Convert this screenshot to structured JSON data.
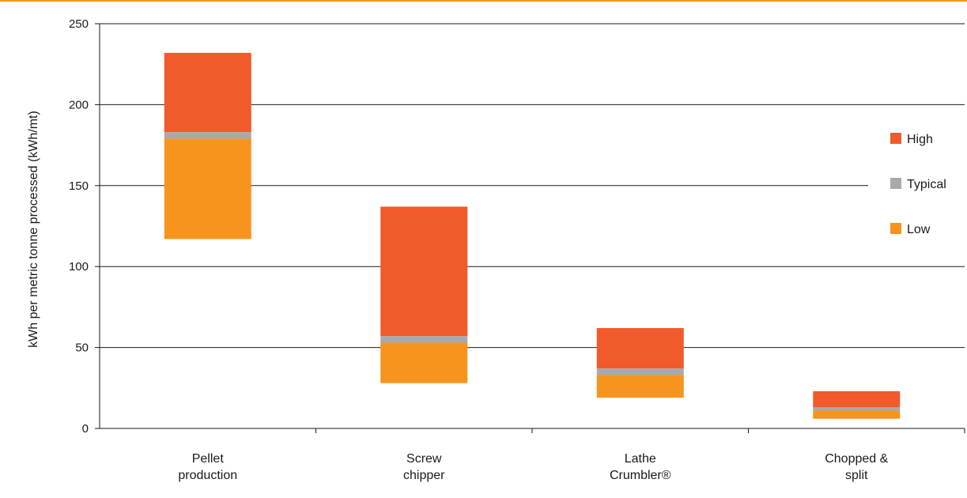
{
  "chart_data": {
    "type": "bar",
    "stacked": true,
    "floating": true,
    "title": "",
    "xlabel": "",
    "ylabel": "kWh per metric tonne processed (kWh/mt)",
    "ylim": [
      0,
      250
    ],
    "yticks": [
      0,
      50,
      100,
      150,
      200,
      250
    ],
    "grid": true,
    "legend_position": "right",
    "categories": [
      [
        "Pellet",
        "production"
      ],
      [
        "Screw",
        "chipper"
      ],
      [
        "Lathe",
        "Crumbler®"
      ],
      [
        "Chopped &",
        "split"
      ]
    ],
    "series": [
      {
        "name": "High",
        "color": "#f15a2b",
        "low": [
          183,
          57,
          37,
          13
        ],
        "high": [
          232,
          137,
          62,
          23
        ]
      },
      {
        "name": "Typical",
        "color": "#a7a9ac",
        "low": [
          179,
          53,
          33,
          11
        ],
        "high": [
          183,
          57,
          37,
          13
        ]
      },
      {
        "name": "Low",
        "color": "#f7941d",
        "low": [
          117,
          28,
          19,
          6
        ],
        "high": [
          179,
          53,
          33,
          11
        ]
      }
    ]
  }
}
